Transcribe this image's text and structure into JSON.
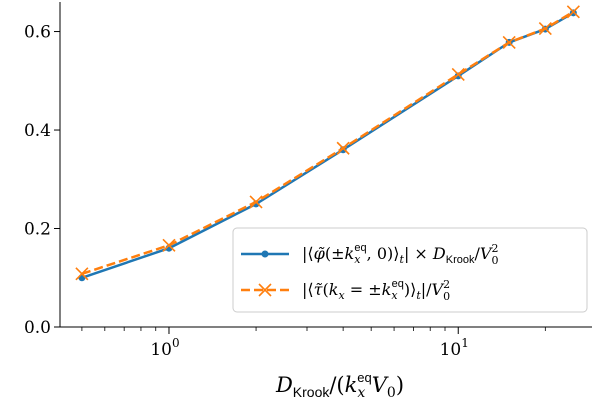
{
  "chart_data": {
    "type": "line",
    "xscale": "log",
    "xlim": [
      0.42,
      29
    ],
    "ylim": [
      0,
      0.66
    ],
    "xlabel": "D_Krook/(k_x^eq V_0)",
    "ylabel": "",
    "x_ticks": [
      {
        "value": 1,
        "base": "10",
        "exp": "0"
      },
      {
        "value": 10,
        "base": "10",
        "exp": "1"
      }
    ],
    "y_ticks": [
      {
        "value": 0.0,
        "label": "0.0"
      },
      {
        "value": 0.2,
        "label": "0.2"
      },
      {
        "value": 0.4,
        "label": "0.4"
      },
      {
        "value": 0.6,
        "label": "0.6"
      }
    ],
    "legend_position": "lower-right",
    "series": [
      {
        "name": "|⟨φ̃(±k_x^eq, 0)⟩_t| × D_Krook/V_0^2",
        "color": "#1f77b4",
        "line_style": "solid",
        "marker": "circle",
        "x": [
          0.5,
          1,
          2,
          4,
          10,
          15,
          20,
          25
        ],
        "y": [
          0.1,
          0.16,
          0.25,
          0.36,
          0.51,
          0.578,
          0.605,
          0.638
        ]
      },
      {
        "name": "|⟨τ̃(k_x = ±k_x^eq)⟩_t|/V_0^2",
        "color": "#ff7f0e",
        "line_style": "dashed",
        "marker": "x",
        "x": [
          0.5,
          1,
          2,
          4,
          10,
          15,
          20,
          25
        ],
        "y": [
          0.108,
          0.166,
          0.254,
          0.363,
          0.513,
          0.578,
          0.606,
          0.64
        ]
      }
    ]
  }
}
